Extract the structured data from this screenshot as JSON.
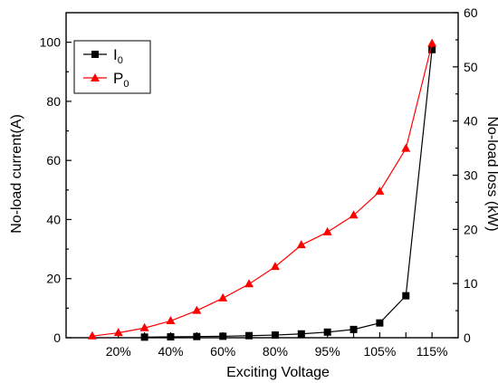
{
  "chart_data": {
    "type": "line",
    "xlabel": "Exciting Voltage",
    "ylabel": "No-load current(A)",
    "y2label": "No-load loss (kW)",
    "x_tick_labels": [
      "20%",
      "40%",
      "60%",
      "80%",
      "95%",
      "105%",
      "115%"
    ],
    "ylim": [
      0,
      110
    ],
    "y2lim": [
      0,
      60
    ],
    "y_ticks": [
      "0",
      "20",
      "40",
      "60",
      "80",
      "100"
    ],
    "y2_ticks": [
      "0",
      "10",
      "20",
      "30",
      "40",
      "50",
      "60"
    ],
    "legend_position": "top-left",
    "grid": false,
    "series": [
      {
        "name": "I",
        "name_subscript": "0",
        "axis": "left",
        "color": "#000000",
        "marker": "square",
        "values": [
          0.2,
          0.3,
          0.4,
          0.5,
          0.7,
          0.9,
          1.3,
          1.9,
          2.8,
          5.0,
          14.2,
          97.5
        ]
      },
      {
        "name": "P",
        "name_subscript": "0",
        "axis": "right",
        "color": "#ff0000",
        "marker": "triangle",
        "values": [
          0.3,
          0.9,
          1.8,
          3.1,
          5.0,
          7.3,
          9.9,
          13.1,
          17.1,
          19.5,
          22.6,
          27.0,
          34.9,
          54.3
        ]
      }
    ]
  }
}
